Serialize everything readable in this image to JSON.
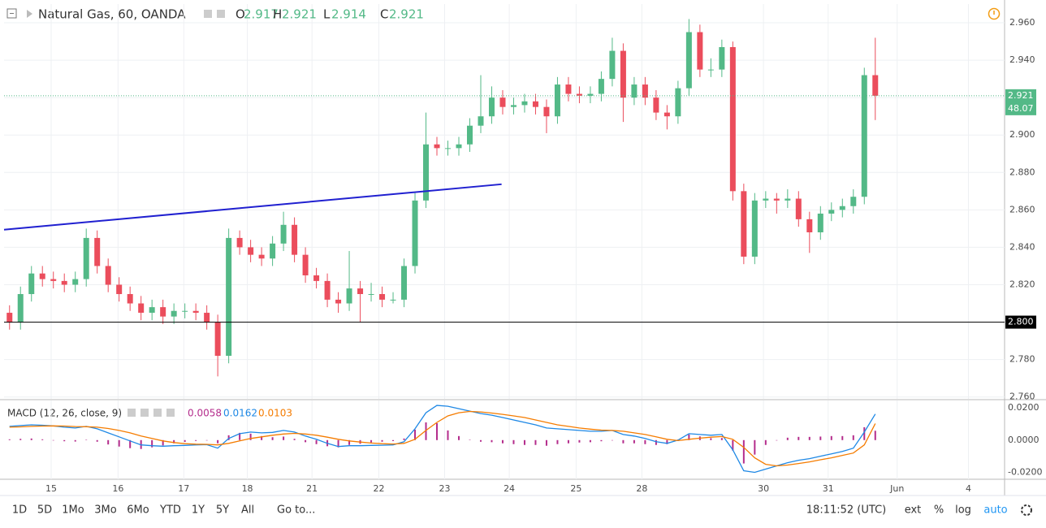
{
  "header": {
    "symbol": "Natural Gas, 60, OANDA",
    "ohlc": [
      {
        "key": "O",
        "value": "2.917"
      },
      {
        "key": "H",
        "value": "2.921"
      },
      {
        "key": "L",
        "value": "2.914"
      },
      {
        "key": "C",
        "value": "2.921"
      }
    ]
  },
  "chart_data": [
    {
      "type": "candlestick",
      "xlim": [
        0,
        91.3
      ],
      "xticks": [
        {
          "value": 4.3,
          "label": "15"
        },
        {
          "value": 10.4,
          "label": "16"
        },
        {
          "value": 16.4,
          "label": "17"
        },
        {
          "value": 22.2,
          "label": "18"
        },
        {
          "value": 28.1,
          "label": "21"
        },
        {
          "value": 34.2,
          "label": "22"
        },
        {
          "value": 40.2,
          "label": "23"
        },
        {
          "value": 46.1,
          "label": "24"
        },
        {
          "value": 52.2,
          "label": "25"
        },
        {
          "value": 58.2,
          "label": "28"
        },
        {
          "value": 69.3,
          "label": "30"
        },
        {
          "value": 75.2,
          "label": "31"
        },
        {
          "value": 81.5,
          "label": "Jun"
        },
        {
          "value": 88.0,
          "label": "4"
        }
      ],
      "ylim": [
        2.759,
        2.97
      ],
      "yticks": [
        {
          "value": 2.76,
          "label": "2.760"
        },
        {
          "value": 2.78,
          "label": "2.780"
        },
        {
          "value": 2.8,
          "label": "2.800"
        },
        {
          "value": 2.82,
          "label": "2.820"
        },
        {
          "value": 2.84,
          "label": "2.840"
        },
        {
          "value": 2.86,
          "label": "2.860"
        },
        {
          "value": 2.88,
          "label": "2.880"
        },
        {
          "value": 2.9,
          "label": "2.900"
        },
        {
          "value": 2.92,
          "label": "2.920"
        },
        {
          "value": 2.94,
          "label": "2.940"
        },
        {
          "value": 2.96,
          "label": "2.960"
        }
      ],
      "grid": true,
      "up_color": "#53b987",
      "down_color": "#eb4d5c",
      "open": [
        2.805,
        2.8,
        2.815,
        2.826,
        2.823,
        2.822,
        2.82,
        2.823,
        2.845,
        2.83,
        2.82,
        2.815,
        2.81,
        2.805,
        2.808,
        2.803,
        2.806,
        2.806,
        2.805,
        2.8,
        2.782,
        2.845,
        2.84,
        2.836,
        2.834,
        2.842,
        2.852,
        2.836,
        2.825,
        2.822,
        2.812,
        2.81,
        2.818,
        2.815,
        2.815,
        2.812,
        2.812,
        2.83,
        2.865,
        2.895,
        2.893,
        2.893,
        2.895,
        2.905,
        2.91,
        2.92,
        2.915,
        2.916,
        2.918,
        2.915,
        2.91,
        2.927,
        2.922,
        2.921,
        2.922,
        2.93,
        2.945,
        2.92,
        2.927,
        2.92,
        2.912,
        2.91,
        2.925,
        2.955,
        2.935,
        2.935,
        2.947,
        2.87,
        2.835,
        2.865,
        2.866,
        2.865,
        2.866,
        2.855,
        2.848,
        2.858,
        2.86,
        2.862,
        2.867,
        2.932
      ],
      "high": [
        2.809,
        2.819,
        2.83,
        2.83,
        2.827,
        2.826,
        2.827,
        2.85,
        2.849,
        2.834,
        2.824,
        2.819,
        2.814,
        2.812,
        2.812,
        2.81,
        2.81,
        2.81,
        2.809,
        2.804,
        2.85,
        2.849,
        2.844,
        2.84,
        2.846,
        2.859,
        2.856,
        2.84,
        2.829,
        2.826,
        2.816,
        2.838,
        2.822,
        2.821,
        2.819,
        2.816,
        2.834,
        2.869,
        2.912,
        2.899,
        2.897,
        2.899,
        2.909,
        2.932,
        2.926,
        2.924,
        2.92,
        2.922,
        2.922,
        2.919,
        2.931,
        2.931,
        2.926,
        2.926,
        2.934,
        2.952,
        2.949,
        2.931,
        2.931,
        2.924,
        2.916,
        2.929,
        2.962,
        2.959,
        2.941,
        2.951,
        2.95,
        2.874,
        2.869,
        2.87,
        2.869,
        2.871,
        2.87,
        2.859,
        2.862,
        2.864,
        2.866,
        2.871,
        2.936,
        2.952
      ],
      "low": [
        2.796,
        2.796,
        2.811,
        2.819,
        2.818,
        2.816,
        2.816,
        2.819,
        2.826,
        2.816,
        2.811,
        2.806,
        2.801,
        2.801,
        2.799,
        2.799,
        2.802,
        2.801,
        2.796,
        2.771,
        2.778,
        2.836,
        2.832,
        2.83,
        2.83,
        2.838,
        2.832,
        2.821,
        2.818,
        2.808,
        2.805,
        2.806,
        2.8,
        2.811,
        2.808,
        2.81,
        2.808,
        2.826,
        2.861,
        2.889,
        2.889,
        2.889,
        2.891,
        2.901,
        2.906,
        2.911,
        2.911,
        2.912,
        2.911,
        2.901,
        2.906,
        2.918,
        2.917,
        2.917,
        2.918,
        2.926,
        2.907,
        2.916,
        2.916,
        2.908,
        2.903,
        2.906,
        2.921,
        2.931,
        2.931,
        2.931,
        2.865,
        2.831,
        2.831,
        2.861,
        2.858,
        2.861,
        2.851,
        2.837,
        2.844,
        2.854,
        2.856,
        2.858,
        2.863,
        2.908
      ],
      "close": [
        2.8,
        2.815,
        2.826,
        2.823,
        2.822,
        2.82,
        2.823,
        2.845,
        2.83,
        2.82,
        2.815,
        2.81,
        2.805,
        2.808,
        2.803,
        2.806,
        2.806,
        2.805,
        2.8,
        2.782,
        2.845,
        2.84,
        2.836,
        2.834,
        2.842,
        2.852,
        2.836,
        2.825,
        2.822,
        2.812,
        2.81,
        2.818,
        2.815,
        2.815,
        2.812,
        2.812,
        2.83,
        2.865,
        2.895,
        2.893,
        2.893,
        2.895,
        2.905,
        2.91,
        2.92,
        2.915,
        2.916,
        2.918,
        2.915,
        2.91,
        2.927,
        2.922,
        2.921,
        2.922,
        2.93,
        2.945,
        2.92,
        2.927,
        2.92,
        2.912,
        2.91,
        2.925,
        2.955,
        2.935,
        2.935,
        2.947,
        2.87,
        2.835,
        2.865,
        2.866,
        2.865,
        2.866,
        2.855,
        2.848,
        2.858,
        2.86,
        2.862,
        2.867,
        2.932,
        2.921
      ],
      "trendline": {
        "x": [
          0,
          45.4
        ],
        "y": [
          2.8494,
          2.8737
        ],
        "color": "#2020d0"
      },
      "hline": {
        "value": 2.8,
        "label": "2.800",
        "color": "#000000"
      },
      "last_price": {
        "value": 2.921,
        "label": "2.921",
        "countdown": "48.07",
        "color": "#53b987"
      }
    },
    {
      "type": "macd",
      "title": "MACD (12, 26, close, 9)",
      "ylim": [
        -0.0243,
        0.0246
      ],
      "yticks": [
        {
          "value": 0.02,
          "label": "0.0200"
        },
        {
          "value": 0,
          "label": "0.0000"
        },
        {
          "value": -0.02,
          "label": "-0.0200"
        }
      ],
      "histogram": {
        "color": "#b42d8c",
        "legend_value": "0.0058",
        "values": [
          0.0005,
          0.0008,
          0.001,
          0.0005,
          0.0,
          -0.0007,
          -0.0009,
          0.0002,
          -0.001,
          -0.0027,
          -0.004,
          -0.005,
          -0.0055,
          -0.0045,
          -0.0033,
          -0.002,
          -0.0011,
          -0.0005,
          -0.0002,
          -0.002,
          0.003,
          0.0045,
          0.004,
          0.0025,
          0.0018,
          0.0022,
          0.0008,
          -0.0013,
          -0.0025,
          -0.0038,
          -0.0045,
          -0.003,
          -0.0023,
          -0.0015,
          -0.001,
          -0.0006,
          0.001,
          0.0065,
          0.011,
          0.0105,
          0.006,
          0.0025,
          0.0002,
          -0.001,
          -0.0013,
          -0.002,
          -0.0025,
          -0.003,
          -0.003,
          -0.0035,
          -0.0025,
          -0.002,
          -0.0015,
          -0.0013,
          -0.0007,
          0.0,
          -0.002,
          -0.002,
          -0.0025,
          -0.003,
          -0.0025,
          0.0003,
          0.0035,
          0.0023,
          0.0012,
          0.0013,
          -0.0065,
          -0.0145,
          -0.009,
          -0.003,
          0.0,
          0.0015,
          0.002,
          0.002,
          0.0022,
          0.0025,
          0.0025,
          0.003,
          0.008,
          0.0058
        ]
      },
      "macd": {
        "color": "#1e88e5",
        "legend_value": "0.0162",
        "values": [
          0.0085,
          0.009,
          0.0095,
          0.0092,
          0.0088,
          0.008,
          0.0075,
          0.0085,
          0.007,
          0.0045,
          0.002,
          -0.0005,
          -0.003,
          -0.0035,
          -0.0038,
          -0.0035,
          -0.0033,
          -0.003,
          -0.0028,
          -0.005,
          0.001,
          0.004,
          0.005,
          0.0045,
          0.0048,
          0.006,
          0.005,
          0.0025,
          0.0005,
          -0.002,
          -0.004,
          -0.0035,
          -0.0035,
          -0.0033,
          -0.0032,
          -0.003,
          -0.001,
          0.007,
          0.017,
          0.0215,
          0.021,
          0.0195,
          0.018,
          0.0165,
          0.0155,
          0.014,
          0.0125,
          0.011,
          0.0095,
          0.0075,
          0.007,
          0.0065,
          0.006,
          0.0055,
          0.0055,
          0.006,
          0.0035,
          0.0025,
          0.001,
          -0.001,
          -0.002,
          0.0,
          0.004,
          0.0035,
          0.003,
          0.0035,
          -0.006,
          -0.019,
          -0.02,
          -0.018,
          -0.016,
          -0.014,
          -0.0125,
          -0.0115,
          -0.01,
          -0.0085,
          -0.007,
          -0.005,
          0.005,
          0.0162
        ]
      },
      "signal": {
        "color": "#f57c00",
        "legend_value": "0.0103",
        "values": [
          0.008,
          0.0082,
          0.0085,
          0.0087,
          0.0088,
          0.0087,
          0.0084,
          0.0083,
          0.008,
          0.0072,
          0.006,
          0.0045,
          0.0025,
          0.001,
          -0.0005,
          -0.0015,
          -0.0022,
          -0.0025,
          -0.0026,
          -0.003,
          -0.002,
          -0.0005,
          0.001,
          0.002,
          0.003,
          0.0038,
          0.0042,
          0.0038,
          0.003,
          0.0018,
          0.0005,
          -0.0005,
          -0.0012,
          -0.0018,
          -0.0022,
          -0.0024,
          -0.002,
          0.0005,
          0.006,
          0.011,
          0.015,
          0.017,
          0.0178,
          0.0175,
          0.0168,
          0.016,
          0.015,
          0.014,
          0.0125,
          0.011,
          0.0095,
          0.0085,
          0.0075,
          0.0068,
          0.0062,
          0.006,
          0.0055,
          0.0045,
          0.0035,
          0.002,
          0.0005,
          -0.0003,
          0.0005,
          0.0012,
          0.0018,
          0.0022,
          0.0005,
          -0.0045,
          -0.011,
          -0.015,
          -0.016,
          -0.0155,
          -0.0145,
          -0.0135,
          -0.0122,
          -0.011,
          -0.0095,
          -0.008,
          -0.003,
          0.0103
        ]
      }
    }
  ],
  "toolbar": {
    "ranges": [
      "1D",
      "5D",
      "1Mo",
      "3Mo",
      "6Mo",
      "YTD",
      "1Y",
      "5Y",
      "All"
    ],
    "goto": "Go to...",
    "clock": "18:11:52 (UTC)",
    "options": [
      "ext",
      "%",
      "log",
      "auto"
    ]
  }
}
